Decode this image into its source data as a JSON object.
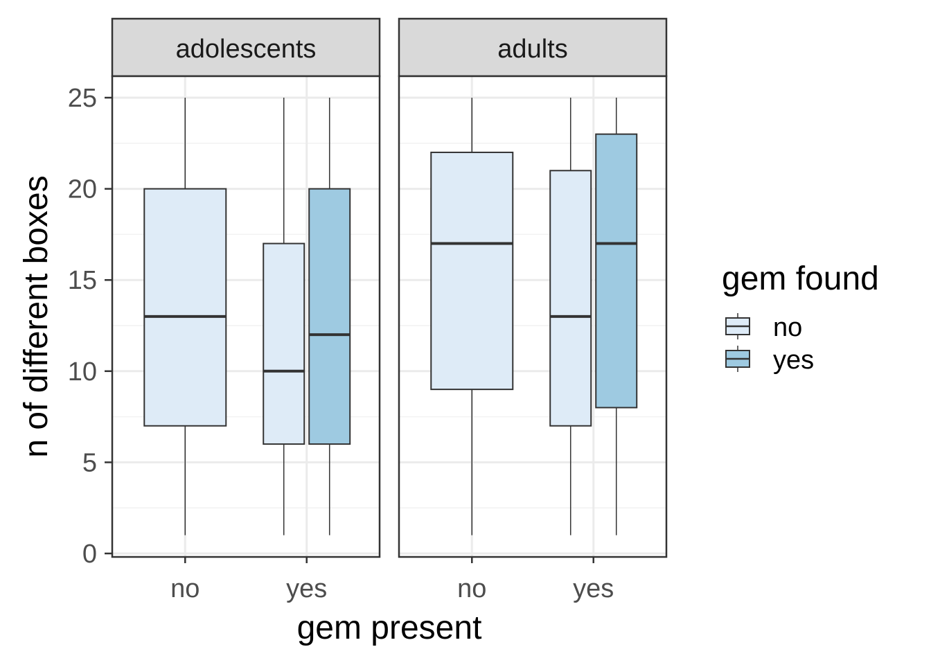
{
  "chart_data": {
    "type": "boxplot",
    "xlabel": "gem present",
    "ylabel": "n of different boxes",
    "ylim": [
      0,
      25
    ],
    "y_ticks": [
      0,
      5,
      10,
      15,
      20,
      25
    ],
    "x_categories": [
      "no",
      "yes"
    ],
    "legend": {
      "title": "gem found",
      "position": "right",
      "entries": [
        {
          "label": "no",
          "color": "#deebf7"
        },
        {
          "label": "yes",
          "color": "#9ecae1"
        }
      ]
    },
    "grid": true,
    "facets": [
      {
        "label": "adolescents",
        "boxes": [
          {
            "x": "no",
            "gem_found": "no",
            "whisker_low": 1,
            "q1": 7,
            "median": 13,
            "q3": 20,
            "whisker_high": 25
          },
          {
            "x": "yes",
            "gem_found": "no",
            "whisker_low": 1,
            "q1": 6,
            "median": 10,
            "q3": 17,
            "whisker_high": 25
          },
          {
            "x": "yes",
            "gem_found": "yes",
            "whisker_low": 1,
            "q1": 6,
            "median": 12,
            "q3": 20,
            "whisker_high": 25
          }
        ]
      },
      {
        "label": "adults",
        "boxes": [
          {
            "x": "no",
            "gem_found": "no",
            "whisker_low": 1,
            "q1": 9,
            "median": 17,
            "q3": 22,
            "whisker_high": 25
          },
          {
            "x": "yes",
            "gem_found": "no",
            "whisker_low": 1,
            "q1": 7,
            "median": 13,
            "q3": 21,
            "whisker_high": 25
          },
          {
            "x": "yes",
            "gem_found": "yes",
            "whisker_low": 1,
            "q1": 8,
            "median": 17,
            "q3": 23,
            "whisker_high": 25
          }
        ]
      }
    ]
  }
}
